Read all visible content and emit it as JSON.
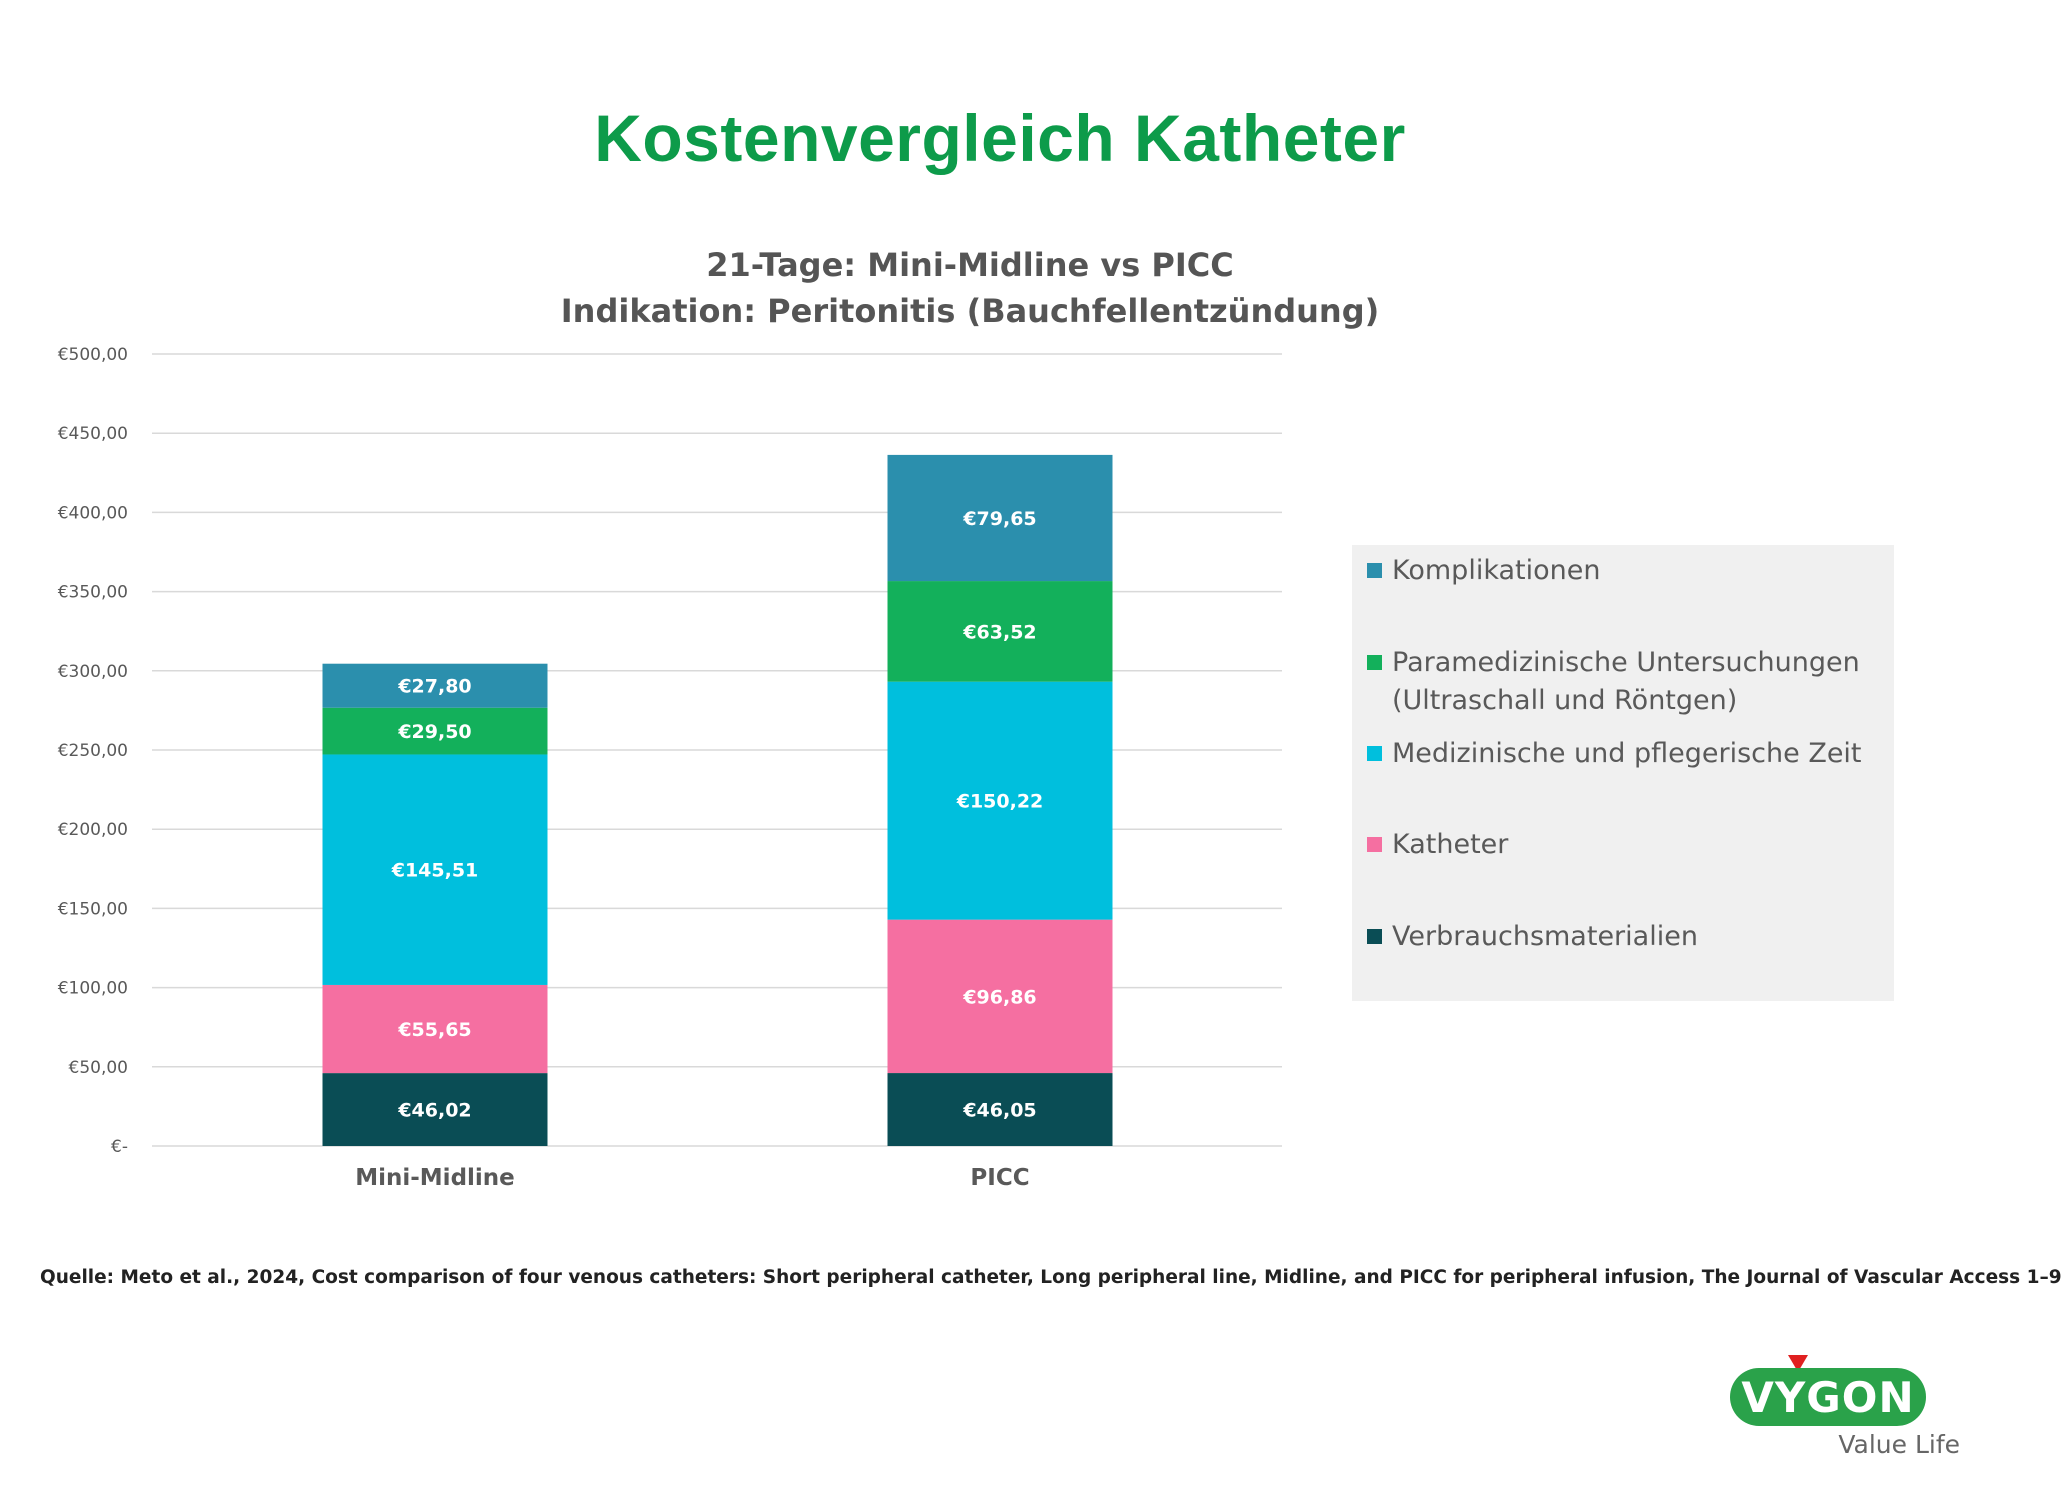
{
  "slide": {
    "title": "Kostenvergleich Katheter",
    "source": "Quelle: Meto et al., 2024, Cost comparison of four venous catheters: Short peripheral catheter, Long peripheral line, Midline, and PICC for peripheral infusion, The Journal of Vascular Access 1–9",
    "logo": {
      "word": "VYGON",
      "tagline": "Value Life"
    }
  },
  "chart_data": {
    "type": "bar",
    "stacked": true,
    "title": "21-Tage: Mini-Midline vs PICC",
    "subtitle": "Indikation: Peritonitis (Bauchfellentzündung)",
    "categories": [
      "Mini-Midline",
      "PICC"
    ],
    "ylim": [
      0,
      500
    ],
    "ytick_values": [
      0,
      50,
      100,
      150,
      200,
      250,
      300,
      350,
      400,
      450,
      500
    ],
    "ytick_labels": [
      "€-",
      "€50,00",
      "€100,00",
      "€150,00",
      "€200,00",
      "€250,00",
      "€300,00",
      "€350,00",
      "€400,00",
      "€450,00",
      "€500,00"
    ],
    "grid": true,
    "legend_position": "right",
    "series": [
      {
        "name": "Verbrauchsmaterialien",
        "color": "#0a4d55",
        "values": [
          46.02,
          46.05
        ],
        "labels": [
          "€46,02",
          "€46,05"
        ]
      },
      {
        "name": "Katheter",
        "color": "#f56fa1",
        "values": [
          55.65,
          96.86
        ],
        "labels": [
          "€55,65",
          "€96,86"
        ]
      },
      {
        "name": "Medizinische und pflegerische Zeit",
        "color": "#00bfdd",
        "values": [
          145.51,
          150.22
        ],
        "labels": [
          "€145,51",
          "€150,22"
        ]
      },
      {
        "name": "Paramedizinische Untersuchungen\n(Ultraschall und Röntgen)",
        "color": "#13b05b",
        "values": [
          29.5,
          63.52
        ],
        "labels": [
          "€29,50",
          "€63,52"
        ]
      },
      {
        "name": "Komplikationen",
        "color": "#2b8fad",
        "values": [
          27.8,
          79.65
        ],
        "labels": [
          "€27,80",
          "€79,65"
        ]
      }
    ]
  }
}
